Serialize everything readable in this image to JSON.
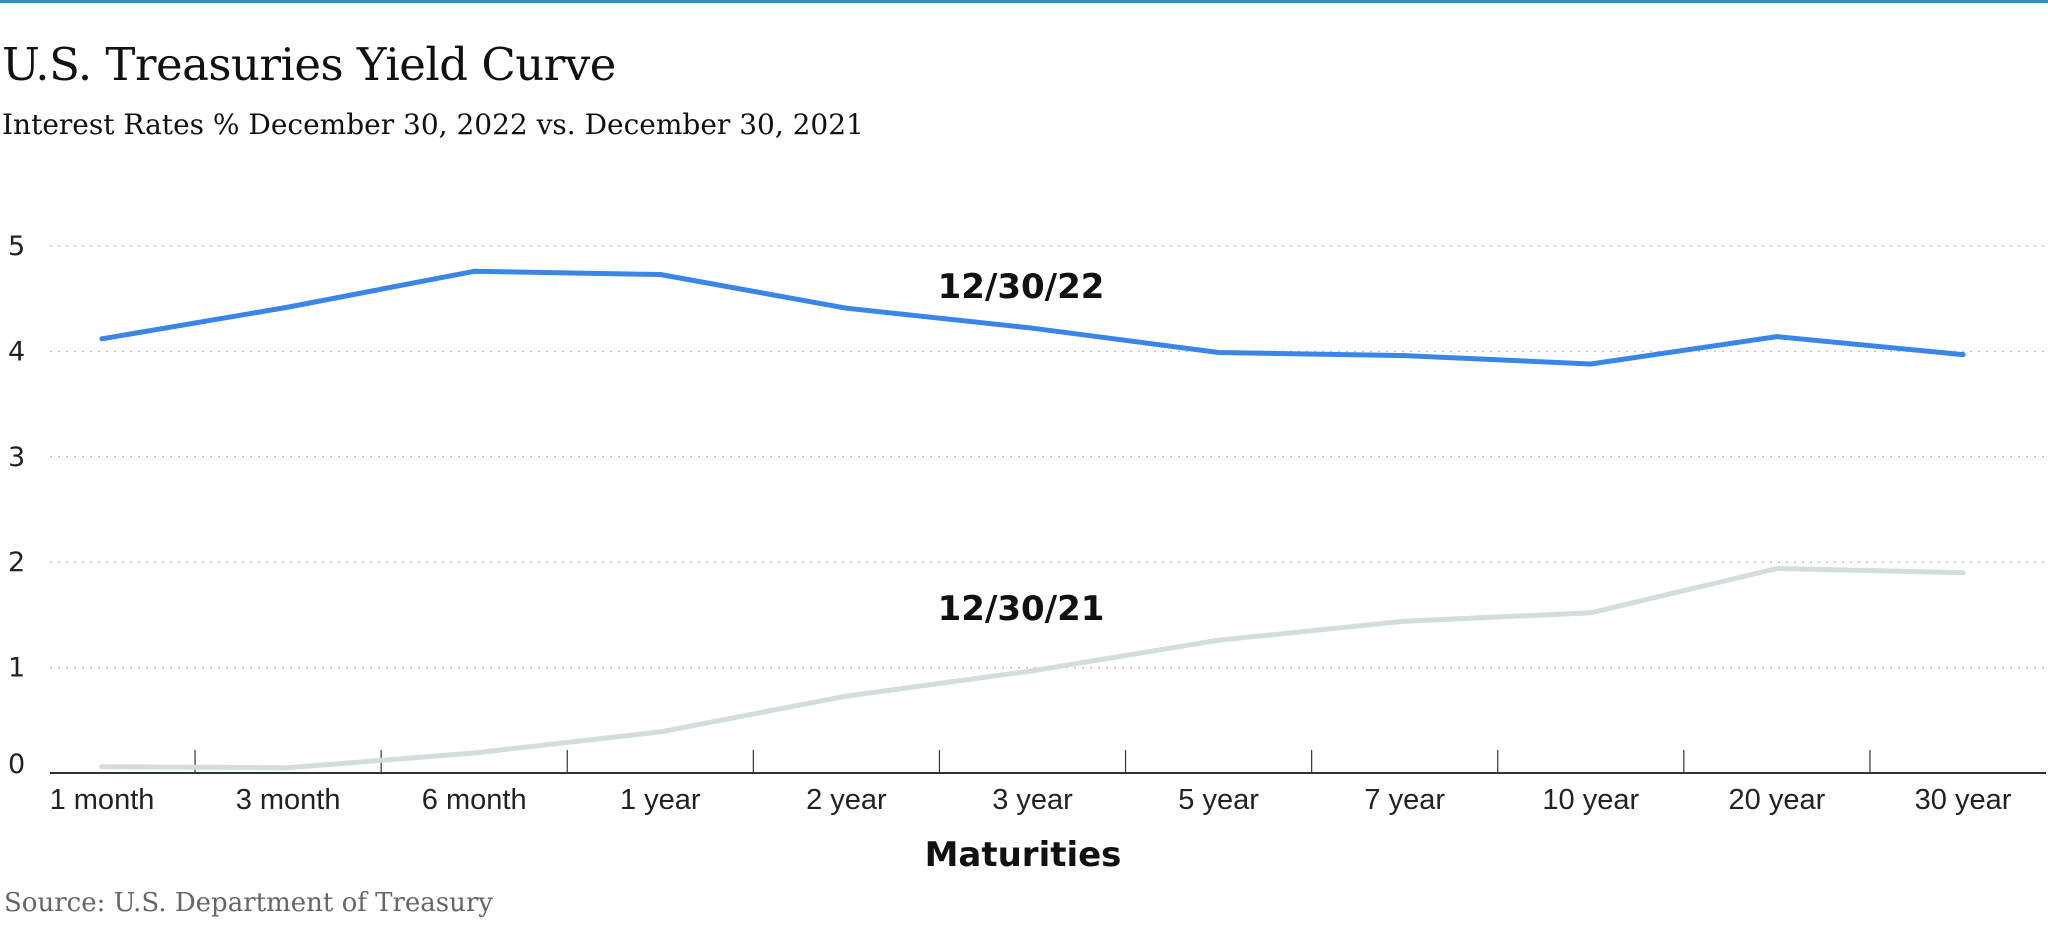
{
  "header": {
    "title": "U.S. Treasuries Yield Curve",
    "subtitle": "Interest Rates % December 30, 2022 vs. December 30, 2021"
  },
  "footer": {
    "source": "Source: U.S. Department of Treasury"
  },
  "colors": {
    "rule": "#2e8fc7",
    "series_2022": "#3a86e8",
    "series_2021": "#d4dcdc",
    "grid": "#bfbfbf",
    "axis": "#333333"
  },
  "chart_data": {
    "type": "line",
    "title": "U.S. Treasuries Yield Curve",
    "subtitle": "Interest Rates % December 30, 2022 vs. December 30, 2021",
    "xlabel": "Maturities",
    "ylabel": "",
    "categories": [
      "1 month",
      "3 month",
      "6 month",
      "1 year",
      "2 year",
      "3 year",
      "5 year",
      "7 year",
      "10 year",
      "20 year",
      "30 year"
    ],
    "ylim": [
      0,
      5
    ],
    "yticks": [
      0,
      1,
      2,
      3,
      4,
      5
    ],
    "grid": "horizontal dotted",
    "legend": "inline labels",
    "series": [
      {
        "name": "12/30/22",
        "values": [
          4.12,
          4.42,
          4.76,
          4.73,
          4.41,
          4.22,
          3.99,
          3.96,
          3.88,
          4.14,
          3.97
        ]
      },
      {
        "name": "12/30/21",
        "values": [
          0.06,
          0.05,
          0.19,
          0.39,
          0.73,
          0.97,
          1.26,
          1.44,
          1.52,
          1.94,
          1.9
        ]
      }
    ]
  }
}
